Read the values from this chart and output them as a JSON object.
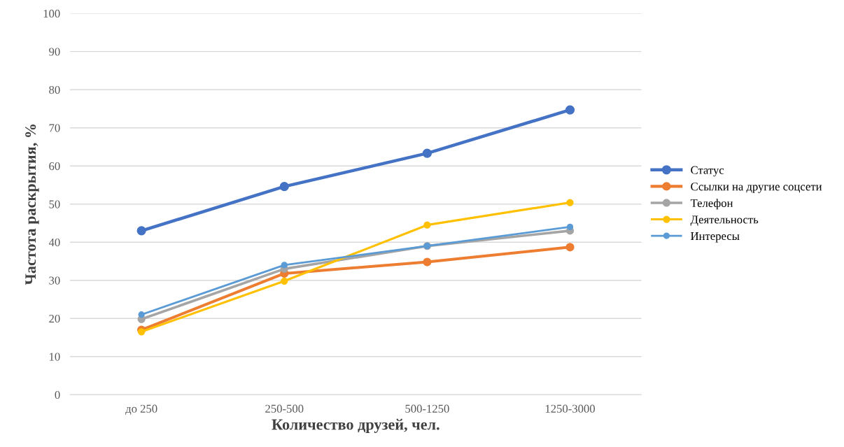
{
  "chart_data": {
    "type": "line",
    "xlabel": "Количество друзей, чел.",
    "ylabel": "Частота раскрытия, %",
    "categories": [
      "до 250",
      "250-500",
      "500-1250",
      "1250-3000"
    ],
    "series": [
      {
        "name": "Статус",
        "color": "#4472c4",
        "values": [
          43,
          54.6,
          63.3,
          74.7
        ]
      },
      {
        "name": "Ссылки на другие соцсети",
        "color": "#ed7d31",
        "values": [
          17,
          31.8,
          34.8,
          38.7
        ]
      },
      {
        "name": "Телефон",
        "color": "#a5a5a5",
        "values": [
          19.8,
          33,
          39,
          43
        ]
      },
      {
        "name": "Деятельность",
        "color": "#ffc000",
        "values": [
          16.5,
          29.8,
          44.5,
          50.4
        ]
      },
      {
        "name": "Интересы",
        "color": "#5b9bd5",
        "values": [
          21,
          34,
          39,
          44
        ]
      }
    ],
    "ylim": [
      0,
      100
    ],
    "yticks": [
      0,
      10,
      20,
      30,
      40,
      50,
      60,
      70,
      80,
      90,
      100
    ],
    "grid": "y",
    "legend": "right",
    "marker": "circle",
    "line_style": "solid"
  }
}
